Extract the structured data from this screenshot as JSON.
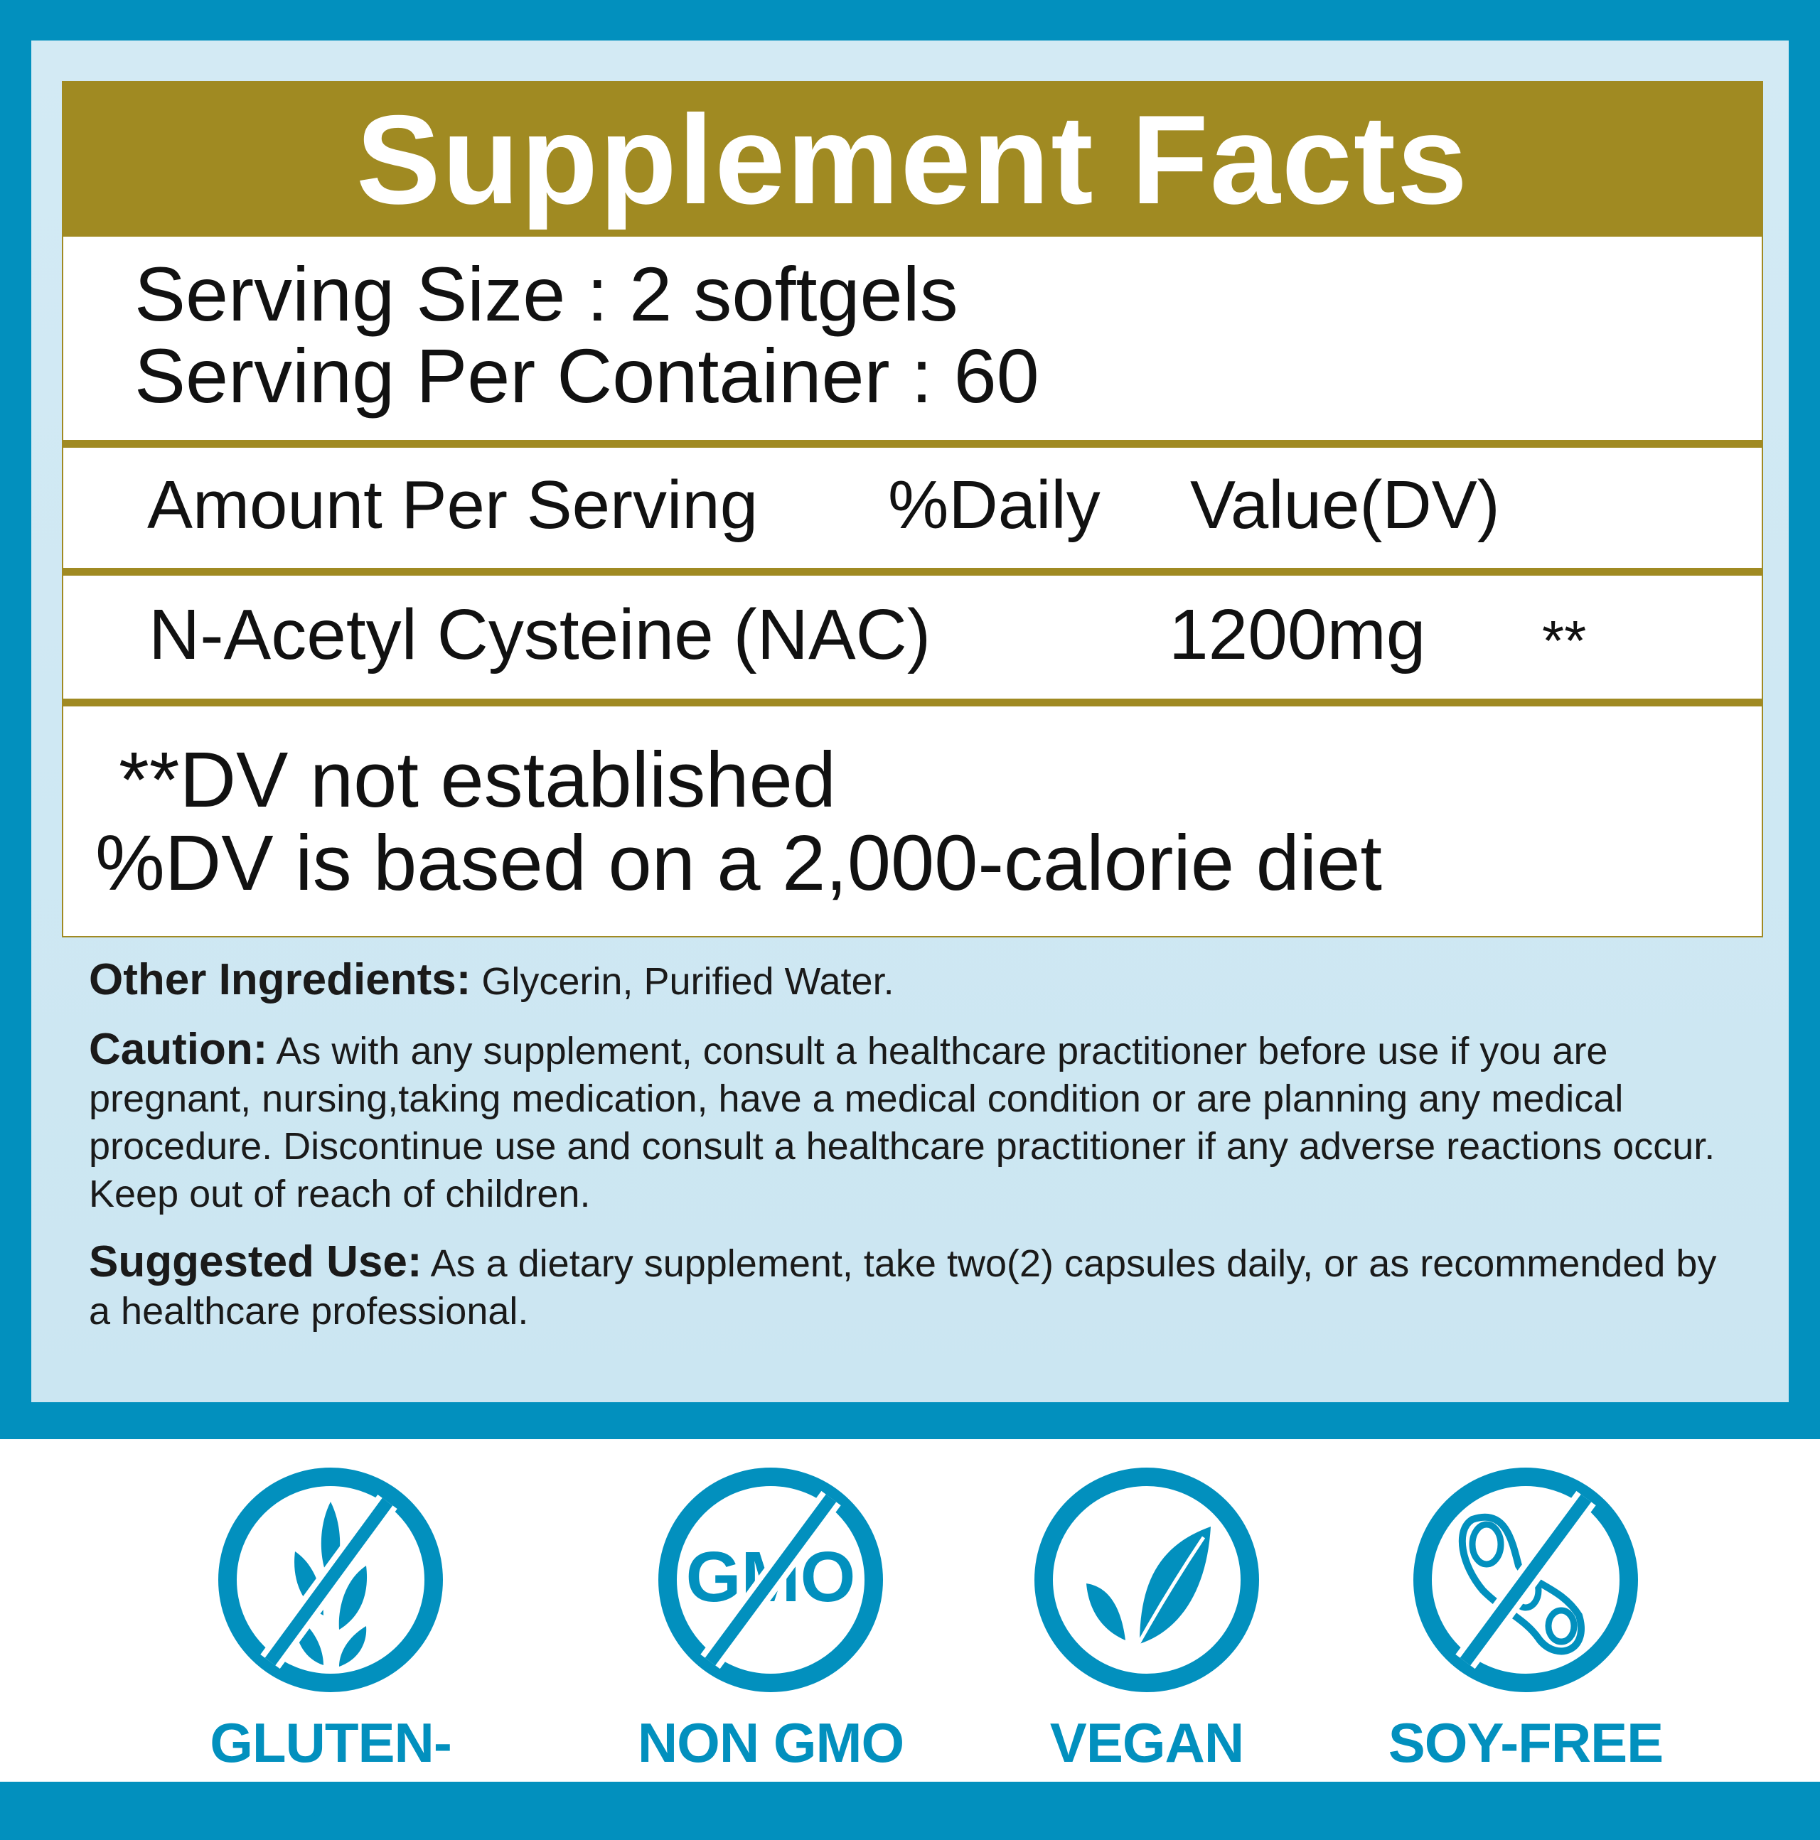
{
  "title": "Supplement Facts",
  "serving": {
    "size": "Serving Size : 2 softgels",
    "per_container": "Serving Per Container : 60"
  },
  "columns": {
    "amount": "Amount Per Serving",
    "daily": "%Daily",
    "value": "Value(DV)"
  },
  "ingredient": {
    "name": "N-Acetyl Cysteine (NAC)",
    "amount": "1200mg",
    "dv": "**"
  },
  "footnotes": {
    "line1": "**DV not established",
    "line2": "%DV is based on a 2,000-calorie diet"
  },
  "info": {
    "other_label": "Other Ingredients:",
    "other_text": " Glycerin, Purified Water.",
    "caution_label": "Caution:",
    "caution_text": " As with any supplement, consult a healthcare practitioner before use if you are pregnant, nursing,taking medication, have a medical condition or are planning any medical procedure. Discontinue use and consult a healthcare practitioner if any adverse reactions occur. Keep out of reach of children.",
    "use_label": "Suggested Use:",
    "use_text": " As a dietary supplement, take two(2) capsules daily, or as recommended by a healthcare professional."
  },
  "badges": [
    {
      "label": "GLUTEN-FREE",
      "icon": "no-wheat-icon"
    },
    {
      "label": "NON GMO",
      "icon": "no-gmo-icon",
      "icon_text": "GMO"
    },
    {
      "label": "VEGAN",
      "icon": "leaf-icon"
    },
    {
      "label": "SOY-FREE",
      "icon": "no-soy-icon"
    }
  ],
  "colors": {
    "blue": "#0290be",
    "gold": "#a08a22",
    "panel": "#d3eaf4"
  }
}
